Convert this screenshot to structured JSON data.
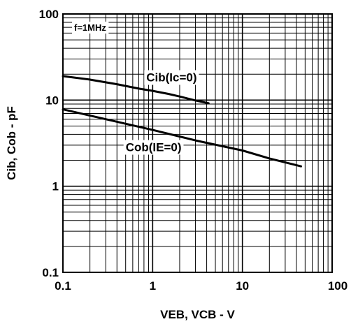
{
  "chart_data": {
    "type": "line",
    "xlabel": "VEB, VCB - V",
    "ylabel": "Cib, Cob - pF",
    "x_scale": "log",
    "y_scale": "log",
    "xlim": [
      0.1,
      100
    ],
    "ylim": [
      0.1,
      100
    ],
    "grid": true,
    "x_tick_labels": [
      "0.1",
      "1",
      "10",
      "100"
    ],
    "y_tick_labels": [
      "0.1",
      "1",
      "10",
      "100"
    ],
    "annotations": [
      "f=1MHz"
    ],
    "series": [
      {
        "name": "Cib(Ic=0)",
        "x": [
          0.1,
          0.2,
          0.4,
          0.7,
          1.0,
          1.5,
          2.0,
          3.0,
          4.2
        ],
        "y": [
          19.0,
          17.3,
          15.3,
          13.6,
          12.8,
          11.8,
          11.0,
          9.9,
          9.2
        ]
      },
      {
        "name": "Cob(IE=0)",
        "x": [
          0.1,
          0.3,
          1.0,
          3.0,
          10.0,
          20.0,
          45.0
        ],
        "y": [
          7.8,
          6.0,
          4.5,
          3.4,
          2.6,
          2.1,
          1.7
        ]
      }
    ]
  }
}
